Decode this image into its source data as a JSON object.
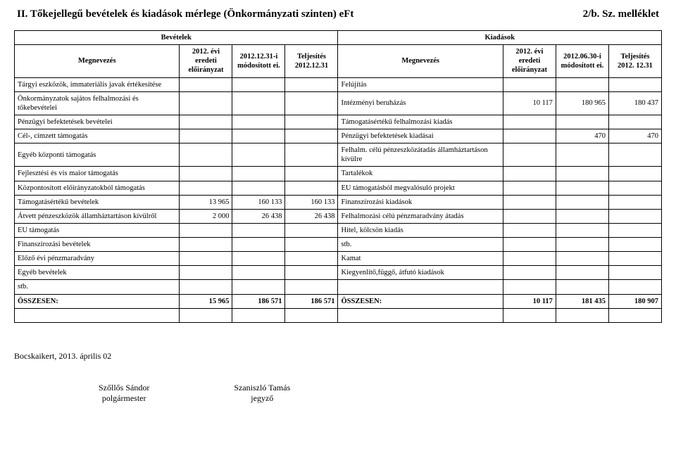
{
  "title_left": "II. Tőkejellegű bevételek és kiadások mérlege (Önkormányzati szinten) eFt",
  "title_right": "2/b. Sz. melléklet",
  "headers": {
    "bevetelek": "Bevételek",
    "kiadasok": "Kiadások",
    "megnevezes": "Megnevezés",
    "col1": "2012. évi eredeti előirányzat",
    "col2": "2012.12.31-i módosított ei.",
    "col3": "Teljesítés 2012.12.31",
    "col4": "2012. évi eredeti előirányzat",
    "col5": "2012.06.30-i módosított ei.",
    "col6": "Teljesítés 2012. 12.31"
  },
  "rows": [
    {
      "l": "Tárgyi eszközök, immateriális javak értékesítése",
      "a": "",
      "b": "",
      "c": "",
      "r": "Felújítás",
      "d": "",
      "e": "",
      "f": ""
    },
    {
      "l": "Önkormányzatok sajátos felhalmozási és tőkebevételei",
      "a": "",
      "b": "",
      "c": "",
      "r": "Intézményi beruházás",
      "d": "10 117",
      "e": "180 965",
      "f": "180 437"
    },
    {
      "l": "Pénzügyi befektetések bevételei",
      "a": "",
      "b": "",
      "c": "",
      "r": "Támogatásértékű felhalmozási kiadás",
      "d": "",
      "e": "",
      "f": ""
    },
    {
      "l": "Cél-, címzett támogatás",
      "a": "",
      "b": "",
      "c": "",
      "r": "Pénzügyi befektetések kiadásai",
      "d": "",
      "e": "470",
      "f": "470"
    },
    {
      "l": "Egyéb központi támogatás",
      "a": "",
      "b": "",
      "c": "",
      "r": "Felhalm. célú pénzeszközátadás államháztartáson kívülre",
      "d": "",
      "e": "",
      "f": ""
    },
    {
      "l": "Fejlesztési és vis maior támogatás",
      "a": "",
      "b": "",
      "c": "",
      "r": "Tartalékok",
      "d": "",
      "e": "",
      "f": ""
    },
    {
      "l": "Központosított előirányzatokból támogatás",
      "a": "",
      "b": "",
      "c": "",
      "r": "EU támogatásból megvalósuló projekt",
      "d": "",
      "e": "",
      "f": ""
    },
    {
      "l": "Támogatásértékű bevételek",
      "a": "13 965",
      "b": "160 133",
      "c": "160 133",
      "r": "Finanszírozási kiadások",
      "d": "",
      "e": "",
      "f": ""
    },
    {
      "l": "Átvett pénzeszközök államháztartáson kívülről",
      "a": "2 000",
      "b": "26 438",
      "c": "26 438",
      "r": "Felhalmozási célú pénzmaradvány átadás",
      "d": "",
      "e": "",
      "f": ""
    },
    {
      "l": "EU támogatás",
      "a": "",
      "b": "",
      "c": "",
      "r": "Hitel, kölcsön kiadás",
      "d": "",
      "e": "",
      "f": ""
    },
    {
      "l": "Finanszírozási bevételek",
      "a": "",
      "b": "",
      "c": "",
      "r": "stb.",
      "d": "",
      "e": "",
      "f": ""
    },
    {
      "l": "Előző évi pénzmaradvány",
      "a": "",
      "b": "",
      "c": "",
      "r": "Kamat",
      "d": "",
      "e": "",
      "f": ""
    },
    {
      "l": "Egyéb bevételek",
      "a": "",
      "b": "",
      "c": "",
      "r": "Kiegyenlítő,függő, átfutó kiadások",
      "d": "",
      "e": "",
      "f": ""
    },
    {
      "l": "stb.",
      "a": "",
      "b": "",
      "c": "",
      "r": "",
      "d": "",
      "e": "",
      "f": ""
    }
  ],
  "totals": {
    "label_left": "ÖSSZESEN:",
    "a": "15 965",
    "b": "186 571",
    "c": "186 571",
    "label_right": "ÖSSZESEN:",
    "d": "10 117",
    "e": "181 435",
    "f": "180 907"
  },
  "footer": {
    "place_date": "Bocskaikert, 2013. április 02",
    "sig1_name": "Szőllős Sándor",
    "sig1_title": "polgármester",
    "sig2_name": "Szaniszló Tamás",
    "sig2_title": "jegyző"
  }
}
